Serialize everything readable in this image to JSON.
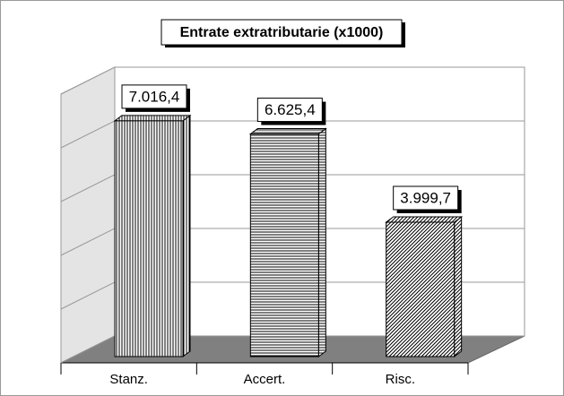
{
  "chart_data": {
    "type": "bar3d",
    "title": "Entrate extratributarie (x1000)",
    "categories": [
      "Stanz.",
      "Accert.",
      "Risc."
    ],
    "values": [
      7016.4,
      6625.4,
      3999.7
    ],
    "value_labels": [
      "7.016,4",
      "6.625,4",
      "3.999,7"
    ],
    "patterns": [
      "vertical",
      "horizontal",
      "diagonal"
    ],
    "ylim": [
      0,
      8000
    ],
    "yticks": [
      0,
      1600,
      3200,
      4800,
      6400,
      8000
    ],
    "grid": true
  }
}
